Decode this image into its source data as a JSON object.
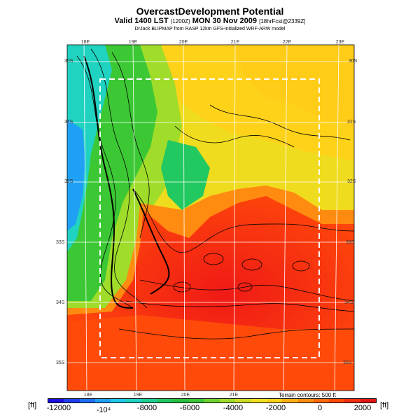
{
  "header": {
    "title": "OvercastDevelopment Potential",
    "subtitle_main": "Valid 1400 LST",
    "subtitle_small1": "(1200Z)",
    "subtitle_date": "MON 30 Nov 2009",
    "subtitle_small2": "[18hrFcst@2339Z]",
    "credit": "DrJack BLIPMAP from RASP 12km GFS-initialized WRF-ARW model"
  },
  "map": {
    "lon_labels_top": [
      "18E",
      "19E",
      "20E",
      "21E",
      "22E",
      "23E"
    ],
    "lon_labels_bottom": [
      "18E",
      "19E",
      "20E",
      "21E"
    ],
    "lat_labels_left": [
      "30S",
      "31S",
      "32S",
      "33S",
      "34S",
      "35S"
    ],
    "lat_labels_right": [
      "30S",
      "31S",
      "32S",
      "33S",
      "34S",
      "35S"
    ]
  },
  "legend": {
    "unit_left": "[ft]",
    "unit_right": "[ft]",
    "terrain_note": "Terrain contours: 500 ft",
    "ticks": [
      "-12000",
      "-10⁴",
      "-8000",
      "-6000",
      "-4000",
      "-2000",
      "0",
      "2000"
    ],
    "colors": [
      "#1a0fe0",
      "#1f3ef0",
      "#1e6ff5",
      "#1ea0f5",
      "#20c8e8",
      "#20d2c0",
      "#1fcf8f",
      "#22c860",
      "#28c040",
      "#3cc834",
      "#70d22e",
      "#a0dc2a",
      "#ccdc26",
      "#f0e020",
      "#ffd21a",
      "#ffb014",
      "#ff8c10",
      "#ff6a0c",
      "#ff4a0a",
      "#f03010",
      "#e01616"
    ]
  }
}
